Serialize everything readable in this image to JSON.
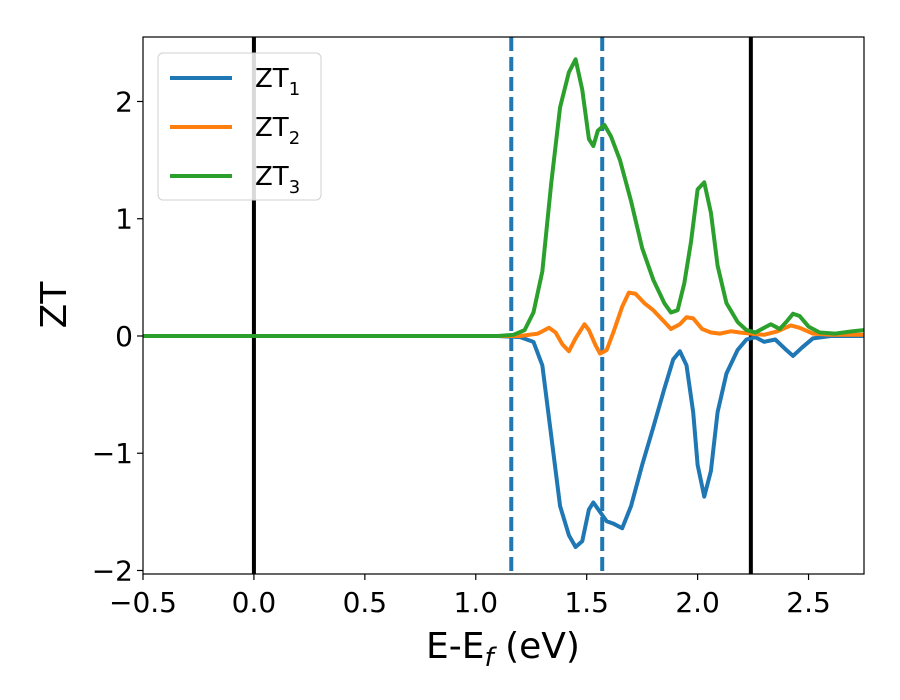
{
  "chart_data": {
    "type": "line",
    "xlabel": "E-E",
    "xlabel_sub": "f",
    "xlabel_unit": " (eV)",
    "ylabel": "ZT",
    "xlim": [
      -0.5,
      2.75
    ],
    "ylim": [
      -2.03,
      2.55
    ],
    "x_ticks": [
      -0.5,
      0.0,
      0.5,
      1.0,
      1.5,
      2.0,
      2.5
    ],
    "x_tick_labels": [
      "−0.5",
      "0.0",
      "0.5",
      "1.0",
      "1.5",
      "2.0",
      "2.5"
    ],
    "y_ticks": [
      -2,
      -1,
      0,
      1,
      2
    ],
    "y_tick_labels": [
      "−2",
      "−1",
      "0",
      "1",
      "2"
    ],
    "grid": false,
    "legend_position": "top-left",
    "vertical_lines": [
      {
        "x": 0.0,
        "style": "solid",
        "color": "#000000"
      },
      {
        "x": 2.24,
        "style": "solid",
        "color": "#000000"
      },
      {
        "x": 1.16,
        "style": "dashed",
        "color": "#1f77b4"
      },
      {
        "x": 1.57,
        "style": "dashed",
        "color": "#1f77b4"
      }
    ],
    "series": [
      {
        "name": "ZT",
        "name_sub": "1",
        "color": "#1f77b4",
        "points": [
          [
            -0.5,
            0
          ],
          [
            1.1,
            0
          ],
          [
            1.2,
            -0.01
          ],
          [
            1.26,
            -0.05
          ],
          [
            1.3,
            -0.25
          ],
          [
            1.34,
            -0.85
          ],
          [
            1.38,
            -1.45
          ],
          [
            1.42,
            -1.7
          ],
          [
            1.45,
            -1.8
          ],
          [
            1.48,
            -1.75
          ],
          [
            1.51,
            -1.48
          ],
          [
            1.53,
            -1.42
          ],
          [
            1.56,
            -1.5
          ],
          [
            1.59,
            -1.58
          ],
          [
            1.62,
            -1.6
          ],
          [
            1.66,
            -1.64
          ],
          [
            1.7,
            -1.45
          ],
          [
            1.75,
            -1.1
          ],
          [
            1.8,
            -0.78
          ],
          [
            1.85,
            -0.45
          ],
          [
            1.89,
            -0.2
          ],
          [
            1.92,
            -0.13
          ],
          [
            1.95,
            -0.25
          ],
          [
            1.98,
            -0.65
          ],
          [
            2.0,
            -1.1
          ],
          [
            2.03,
            -1.37
          ],
          [
            2.06,
            -1.15
          ],
          [
            2.09,
            -0.65
          ],
          [
            2.13,
            -0.32
          ],
          [
            2.18,
            -0.12
          ],
          [
            2.22,
            -0.03
          ],
          [
            2.26,
            -0.01
          ],
          [
            2.3,
            -0.05
          ],
          [
            2.35,
            -0.03
          ],
          [
            2.4,
            -0.12
          ],
          [
            2.43,
            -0.17
          ],
          [
            2.47,
            -0.1
          ],
          [
            2.52,
            -0.02
          ],
          [
            2.6,
            0
          ],
          [
            2.75,
            0
          ]
        ]
      },
      {
        "name": "ZT",
        "name_sub": "2",
        "color": "#ff7f0e",
        "points": [
          [
            -0.5,
            0
          ],
          [
            1.2,
            0
          ],
          [
            1.28,
            0.02
          ],
          [
            1.33,
            0.07
          ],
          [
            1.36,
            0.03
          ],
          [
            1.39,
            -0.07
          ],
          [
            1.42,
            -0.13
          ],
          [
            1.45,
            -0.02
          ],
          [
            1.49,
            0.1
          ],
          [
            1.51,
            0.05
          ],
          [
            1.54,
            -0.08
          ],
          [
            1.56,
            -0.15
          ],
          [
            1.59,
            -0.12
          ],
          [
            1.62,
            0.03
          ],
          [
            1.66,
            0.25
          ],
          [
            1.69,
            0.37
          ],
          [
            1.72,
            0.36
          ],
          [
            1.76,
            0.28
          ],
          [
            1.8,
            0.22
          ],
          [
            1.85,
            0.12
          ],
          [
            1.88,
            0.06
          ],
          [
            1.92,
            0.1
          ],
          [
            1.95,
            0.16
          ],
          [
            1.98,
            0.15
          ],
          [
            2.02,
            0.06
          ],
          [
            2.06,
            0.03
          ],
          [
            2.1,
            0.02
          ],
          [
            2.15,
            0.04
          ],
          [
            2.19,
            0.03
          ],
          [
            2.24,
            0.02
          ],
          [
            2.3,
            0.01
          ],
          [
            2.36,
            0.04
          ],
          [
            2.42,
            0.09
          ],
          [
            2.46,
            0.07
          ],
          [
            2.52,
            0.02
          ],
          [
            2.6,
            0.01
          ],
          [
            2.75,
            0.01
          ]
        ]
      },
      {
        "name": "ZT",
        "name_sub": "3",
        "color": "#2ca02c",
        "points": [
          [
            -0.5,
            0
          ],
          [
            1.1,
            0
          ],
          [
            1.17,
            0.01
          ],
          [
            1.22,
            0.05
          ],
          [
            1.26,
            0.2
          ],
          [
            1.3,
            0.55
          ],
          [
            1.34,
            1.3
          ],
          [
            1.38,
            1.95
          ],
          [
            1.42,
            2.25
          ],
          [
            1.45,
            2.36
          ],
          [
            1.48,
            2.1
          ],
          [
            1.51,
            1.68
          ],
          [
            1.53,
            1.62
          ],
          [
            1.55,
            1.75
          ],
          [
            1.58,
            1.8
          ],
          [
            1.61,
            1.7
          ],
          [
            1.65,
            1.5
          ],
          [
            1.7,
            1.15
          ],
          [
            1.75,
            0.75
          ],
          [
            1.8,
            0.48
          ],
          [
            1.85,
            0.28
          ],
          [
            1.88,
            0.2
          ],
          [
            1.91,
            0.22
          ],
          [
            1.94,
            0.45
          ],
          [
            1.97,
            0.8
          ],
          [
            2.0,
            1.25
          ],
          [
            2.03,
            1.31
          ],
          [
            2.06,
            1.05
          ],
          [
            2.09,
            0.6
          ],
          [
            2.13,
            0.28
          ],
          [
            2.18,
            0.12
          ],
          [
            2.22,
            0.05
          ],
          [
            2.26,
            0.03
          ],
          [
            2.3,
            0.07
          ],
          [
            2.33,
            0.1
          ],
          [
            2.37,
            0.06
          ],
          [
            2.4,
            0.12
          ],
          [
            2.43,
            0.19
          ],
          [
            2.46,
            0.17
          ],
          [
            2.5,
            0.08
          ],
          [
            2.55,
            0.03
          ],
          [
            2.62,
            0.02
          ],
          [
            2.7,
            0.04
          ],
          [
            2.75,
            0.05
          ]
        ]
      }
    ]
  }
}
